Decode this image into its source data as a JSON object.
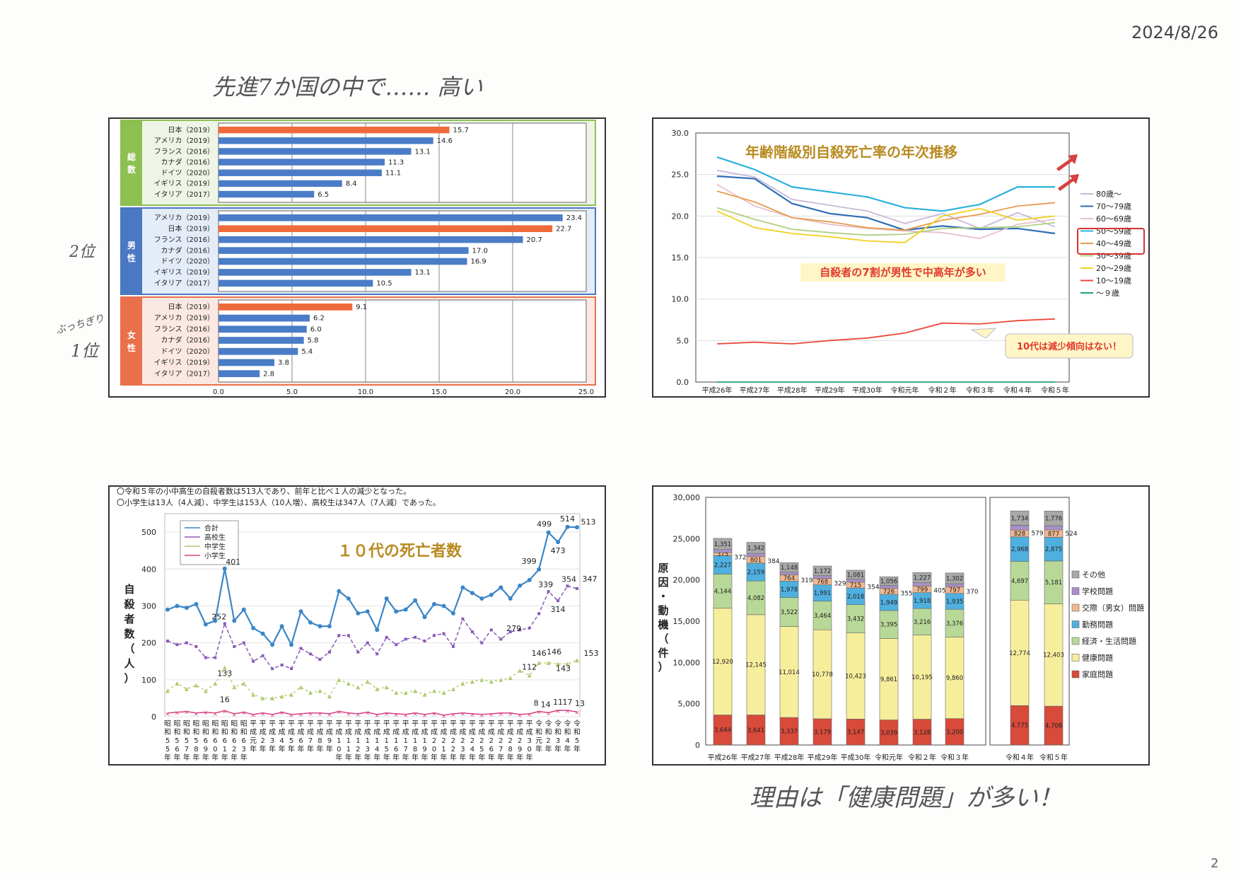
{
  "date_stamp": "2024/8/26",
  "page_number": "2",
  "handwritten": {
    "top_note": "先進7か国の中で…… 高い",
    "rank2": "2位",
    "rank1_prefix": "ぶっちぎり",
    "rank1": "1位",
    "bottom_note": "理由は「健康問題」が多い！"
  },
  "chart_data": [
    {
      "type": "bar",
      "orientation": "horizontal",
      "xlim": [
        0,
        25
      ],
      "xticks": [
        "0.0",
        "5.0",
        "10.0",
        "15.0",
        "20.0",
        "25.0"
      ],
      "groups": [
        {
          "label": "総数",
          "color": "#8dc051",
          "categories": [
            "日本（2019）",
            "アメリカ（2019）",
            "フランス（2016）",
            "カナダ（2016）",
            "ドイツ（2020）",
            "イギリス（2019）",
            "イタリア（2017）"
          ],
          "values": [
            15.7,
            14.6,
            13.1,
            11.3,
            11.1,
            8.4,
            6.5
          ],
          "labels": [
            "15.7",
            "14.6",
            "13.1",
            "11.3",
            "11.1",
            "8.4",
            "6.5"
          ],
          "highlight": 0
        },
        {
          "label": "男性",
          "color": "#4a78c2",
          "categories": [
            "アメリカ（2019）",
            "日本（2019）",
            "フランス（2016）",
            "カナダ（2016）",
            "ドイツ（2020）",
            "イギリス（2019）",
            "イタリア（2017）"
          ],
          "values": [
            23.4,
            22.7,
            20.7,
            17.0,
            16.9,
            13.1,
            10.5
          ],
          "labels": [
            "23.4",
            "22.7",
            "20.7",
            "17.0",
            "16.9",
            "13.1",
            "10.5"
          ],
          "highlight": 1
        },
        {
          "label": "女性",
          "color": "#e9704a",
          "categories": [
            "日本（2019）",
            "アメリカ（2019）",
            "フランス（2016）",
            "カナダ（2016）",
            "ドイツ（2020）",
            "イギリス（2019）",
            "イタリア（2017）"
          ],
          "values": [
            9.1,
            6.2,
            6.0,
            5.8,
            5.4,
            3.8,
            2.8
          ],
          "labels": [
            "9.1",
            "6.2",
            "6.0",
            "5.8",
            "5.4",
            "3.8",
            "2.8"
          ],
          "highlight": 0
        }
      ],
      "colors": {
        "highlight": "#ef6a3a",
        "normal": "#4a7cc7"
      }
    },
    {
      "type": "line",
      "title": "年齢階級別自殺死亡率の年次推移",
      "x": [
        "平成26年",
        "平成27年",
        "平成28年",
        "平成29年",
        "平成30年",
        "令和元年",
        "令和２年",
        "令和３年",
        "令和４年",
        "令和５年"
      ],
      "ylim": [
        0,
        30
      ],
      "yticks": [
        "0.0",
        "5.0",
        "10.0",
        "15.0",
        "20.0",
        "25.0",
        "30.0"
      ],
      "series": [
        {
          "name": "80歳～",
          "color": "#c8b8d8",
          "values": [
            25.5,
            24.7,
            22.0,
            21.3,
            20.6,
            19.1,
            20.3,
            18.5,
            20.4,
            18.7
          ]
        },
        {
          "name": "70～79歳",
          "color": "#2f6db5",
          "values": [
            24.8,
            24.5,
            21.5,
            20.3,
            19.8,
            18.3,
            18.8,
            18.4,
            18.5,
            17.9
          ]
        },
        {
          "name": "60～69歳",
          "color": "#e8c0c8",
          "values": [
            23.8,
            21.2,
            19.8,
            19.0,
            18.5,
            18.2,
            18.0,
            17.3,
            19.0,
            19.6
          ]
        },
        {
          "name": "50～59歳",
          "color": "#2bb0dc",
          "values": [
            27.1,
            25.6,
            23.5,
            22.9,
            22.3,
            21.0,
            20.6,
            21.4,
            23.5,
            23.5
          ]
        },
        {
          "name": "40～49歳",
          "color": "#e89b4f",
          "values": [
            23.0,
            21.7,
            19.8,
            19.3,
            18.6,
            18.3,
            19.5,
            20.2,
            21.2,
            21.6
          ]
        },
        {
          "name": "30～39歳",
          "color": "#b0d080",
          "values": [
            21.0,
            19.6,
            18.4,
            18.0,
            17.7,
            17.8,
            18.5,
            18.6,
            18.7,
            19.2
          ]
        },
        {
          "name": "20～29歳",
          "color": "#f0d020",
          "values": [
            20.6,
            18.6,
            17.9,
            17.5,
            17.0,
            16.8,
            20.0,
            20.9,
            19.5,
            20.0
          ]
        },
        {
          "name": "10～19歳",
          "color": "#e84a3a",
          "values": [
            4.6,
            4.8,
            4.6,
            5.0,
            5.3,
            5.9,
            7.1,
            7.0,
            7.4,
            7.6
          ]
        },
        {
          "name": "～９歳",
          "color": "#20a070",
          "values": [
            0.0,
            0.0,
            0.0,
            0.0,
            0.0,
            0.0,
            0.0,
            0.0,
            0.0,
            0.0
          ]
        }
      ],
      "annotations": [
        "自殺者の7割が男性で中高年が多い",
        "10代は減少傾向はない！"
      ]
    },
    {
      "type": "line",
      "title": "１０代の死亡者数",
      "notes": [
        "〇令和５年の小中高生の自殺者数は513人であり、前年と比べ１人の減少となった。",
        "〇小学生は13人（4人減）、中学生は153人（10人増）、高校生は347人（7人減）であった。"
      ],
      "ylabel": "自殺者数（人）",
      "ylim": [
        0,
        550
      ],
      "yticks": [
        "0",
        "100",
        "200",
        "300",
        "400",
        "500"
      ],
      "x": [
        "昭和55年",
        "昭和56年",
        "昭和57年",
        "昭和58年",
        "昭和59年",
        "昭和60年",
        "昭和61年",
        "昭和62年",
        "昭和63年",
        "平成元年",
        "平成2年",
        "平成3年",
        "平成4年",
        "平成5年",
        "平成6年",
        "平成7年",
        "平成8年",
        "平成9年",
        "平成10年",
        "平成11年",
        "平成12年",
        "平成13年",
        "平成14年",
        "平成15年",
        "平成16年",
        "平成17年",
        "平成18年",
        "平成19年",
        "平成20年",
        "平成21年",
        "平成22年",
        "平成23年",
        "平成24年",
        "平成25年",
        "平成26年",
        "平成27年",
        "平成28年",
        "平成29年",
        "平成30年",
        "令和元年",
        "令和2年",
        "令和3年",
        "令和4年",
        "令和5年"
      ],
      "x_top": [
        "昭",
        "昭",
        "昭",
        "昭",
        "昭",
        "昭",
        "昭",
        "昭",
        "昭",
        "平",
        "平",
        "平",
        "平",
        "平",
        "平",
        "平",
        "平",
        "平",
        "平",
        "平",
        "平",
        "平",
        "平",
        "平",
        "平",
        "平",
        "平",
        "平",
        "平",
        "平",
        "平",
        "平",
        "平",
        "平",
        "平",
        "平",
        "平",
        "平",
        "平",
        "令",
        "令",
        "令",
        "令",
        "令"
      ],
      "x_mid": [
        "和",
        "和",
        "和",
        "和",
        "和",
        "和",
        "和",
        "和",
        "和",
        "成",
        "成",
        "成",
        "成",
        "成",
        "成",
        "成",
        "成",
        "成",
        "成",
        "成",
        "成",
        "成",
        "成",
        "成",
        "成",
        "成",
        "成",
        "成",
        "成",
        "成",
        "成",
        "成",
        "成",
        "成",
        "成",
        "成",
        "成",
        "成",
        "成",
        "和",
        "和",
        "和",
        "和",
        "和"
      ],
      "x_num": [
        "5",
        "5",
        "5",
        "5",
        "6",
        "6",
        "6",
        "6",
        "6",
        "元",
        "2",
        "3",
        "4",
        "5",
        "6",
        "7",
        "8",
        "9",
        "1",
        "1",
        "1",
        "1",
        "1",
        "1",
        "1",
        "1",
        "1",
        "1",
        "2",
        "2",
        "2",
        "2",
        "2",
        "2",
        "2",
        "2",
        "2",
        "2",
        "3",
        "元",
        "2",
        "3",
        "4",
        "5"
      ],
      "x_num2": [
        "5",
        "6",
        "7",
        "8",
        "9",
        "0",
        "1",
        "2",
        "3",
        "",
        "",
        "",
        "",
        "",
        "",
        "",
        "",
        "",
        "0",
        "1",
        "2",
        "3",
        "4",
        "5",
        "6",
        "7",
        "8",
        "9",
        "0",
        "1",
        "2",
        "3",
        "4",
        "5",
        "6",
        "7",
        "8",
        "9",
        "0",
        "",
        "",
        "",
        "",
        ""
      ],
      "x_year": "年",
      "series": [
        {
          "name": "合計",
          "color": "#3a86c8",
          "values": [
            290,
            300,
            295,
            305,
            250,
            260,
            401,
            260,
            290,
            240,
            225,
            195,
            245,
            195,
            285,
            255,
            245,
            245,
            340,
            320,
            280,
            285,
            235,
            320,
            285,
            290,
            315,
            270,
            305,
            300,
            280,
            350,
            335,
            320,
            330,
            350,
            320,
            355,
            370,
            399,
            499,
            473,
            514,
            513
          ]
        },
        {
          "name": "高校生",
          "color": "#8a5ab8",
          "values": [
            205,
            195,
            200,
            190,
            160,
            160,
            252,
            190,
            200,
            150,
            165,
            130,
            140,
            130,
            185,
            170,
            155,
            175,
            220,
            220,
            175,
            200,
            170,
            215,
            195,
            210,
            215,
            205,
            220,
            225,
            190,
            265,
            230,
            200,
            235,
            210,
            230,
            235,
            240,
            279,
            339,
            314,
            354,
            347
          ]
        },
        {
          "name": "中学生",
          "color": "#b0cc70",
          "values": [
            70,
            90,
            75,
            85,
            70,
            90,
            133,
            80,
            90,
            60,
            50,
            50,
            55,
            60,
            80,
            65,
            70,
            55,
            100,
            90,
            80,
            95,
            75,
            80,
            65,
            65,
            70,
            60,
            70,
            65,
            75,
            90,
            95,
            100,
            95,
            100,
            105,
            125,
            112,
            146,
            146,
            143,
            143,
            153
          ]
        },
        {
          "name": "小学生",
          "color": "#d84080",
          "values": [
            10,
            12,
            14,
            10,
            12,
            10,
            16,
            8,
            12,
            6,
            10,
            6,
            12,
            6,
            8,
            10,
            10,
            8,
            14,
            10,
            8,
            12,
            6,
            10,
            8,
            6,
            10,
            6,
            10,
            4,
            8,
            10,
            8,
            6,
            8,
            10,
            10,
            6,
            8,
            14,
            11,
            17,
            17,
            13
          ]
        }
      ],
      "point_labels": {
        "401": "401",
        "252": "252",
        "133": "133",
        "16": "16",
        "399": "399",
        "499": "499",
        "514": "514",
        "513": "513",
        "473": "473",
        "339": "339",
        "354": "354",
        "347": "347",
        "279": "279",
        "314": "314",
        "112": "112",
        "146a": "146",
        "146b": "146",
        "143": "143",
        "153": "153",
        "8": "8",
        "14": "14",
        "11": "11",
        "17": "17",
        "13": "13"
      }
    },
    {
      "type": "bar",
      "stacked": true,
      "ylabel": "原因・動機（件）",
      "ylim": [
        0,
        30000
      ],
      "yticks": [
        "0",
        "5,000",
        "10,000",
        "15,000",
        "20,000",
        "25,000",
        "30,000"
      ],
      "categories": [
        "平成26年",
        "平成27年",
        "平成28年",
        "平成29年",
        "平成30年",
        "令和元年",
        "令和２年",
        "令和３年",
        "令和４年",
        "令和５年"
      ],
      "series": [
        {
          "name": "家庭問題",
          "color": "#d84a3a",
          "values": [
            3644,
            3641,
            3337,
            3179,
            3147,
            3039,
            3128,
            3200,
            4775,
            4708
          ],
          "labels": [
            "3,644",
            "3,641",
            "3,337",
            "3,179",
            "3,147",
            "3,039",
            "3,128",
            "3,200",
            "4,775",
            "4,708"
          ]
        },
        {
          "name": "健康問題",
          "color": "#f7ee9c",
          "values": [
            12920,
            12145,
            11014,
            10778,
            10423,
            9861,
            10195,
            9860,
            12774,
            12403
          ],
          "labels": [
            "12,920",
            "12,145",
            "11,014",
            "10,778",
            "10,423",
            "9,861",
            "10,195",
            "9,860",
            "12,774",
            "12,403"
          ]
        },
        {
          "name": "経済・生活問題",
          "color": "#b8d898",
          "values": [
            4144,
            4082,
            3522,
            3464,
            3432,
            3395,
            3216,
            3376,
            4697,
            5181
          ],
          "labels": [
            "4,144",
            "4,082",
            "3,522",
            "3,464",
            "3,432",
            "3,395",
            "3,216",
            "3,376",
            "4,697",
            "5,181"
          ]
        },
        {
          "name": "勤務問題",
          "color": "#4fb0e0",
          "values": [
            2227,
            2159,
            1978,
            1991,
            2018,
            1949,
            1918,
            1935,
            2968,
            2875
          ],
          "labels": [
            "2,227",
            "2,159",
            "1,978",
            "1,991",
            "2,018",
            "1,949",
            "1,918",
            "1,935",
            "2,968",
            "2,875"
          ]
        },
        {
          "name": "交際（男女）問題",
          "color": "#f0b890",
          "values": [
            375,
            801,
            764,
            768,
            715,
            726,
            799,
            797,
            828,
            877
          ],
          "labels": [
            "375",
            "801",
            "764",
            "768",
            "715",
            "726",
            "799",
            "797",
            "828",
            "877"
          ]
        },
        {
          "name": "学校問題",
          "color": "#a890c8",
          "values": [
            372,
            384,
            319,
            329,
            354,
            355,
            405,
            370,
            579,
            524
          ],
          "labels": [
            "372",
            "384",
            "319",
            "329",
            "354",
            "355",
            "405",
            "370",
            "579",
            "524"
          ]
        },
        {
          "name": "その他",
          "color": "#a8a8a8",
          "values": [
            1351,
            1342,
            1148,
            1172,
            1081,
            1056,
            1227,
            1302,
            1734,
            1776
          ],
          "labels": [
            "1,351",
            "1,342",
            "1,148",
            "1,172",
            "1,081",
            "1,056",
            "1,227",
            "1,302",
            "1,734",
            "1,776"
          ]
        }
      ],
      "legend": [
        "その他",
        "学校問題",
        "交際（男女）問題",
        "勤務問題",
        "経済・生活問題",
        "健康問題",
        "家庭問題"
      ]
    }
  ]
}
